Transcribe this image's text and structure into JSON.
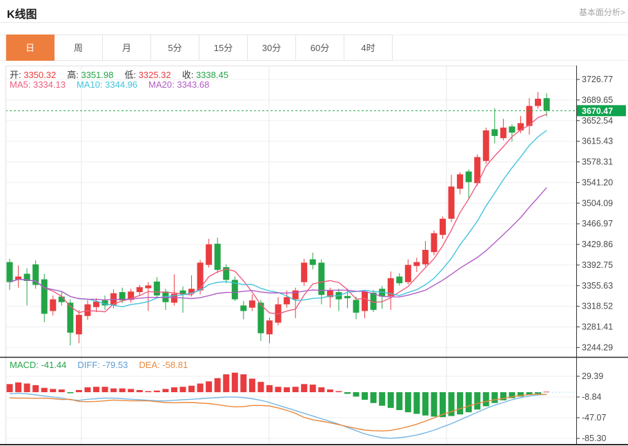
{
  "header": {
    "title": "K线图",
    "link": "基本面分析>"
  },
  "tabs": {
    "selected_index": 0,
    "items": [
      {
        "slug": "day",
        "label": "日"
      },
      {
        "slug": "week",
        "label": "周"
      },
      {
        "slug": "month",
        "label": "月"
      },
      {
        "slug": "5min",
        "label": "5分"
      },
      {
        "slug": "15min",
        "label": "15分"
      },
      {
        "slug": "30min",
        "label": "30分"
      },
      {
        "slug": "60min",
        "label": "60分"
      },
      {
        "slug": "4hour",
        "label": "4时"
      }
    ]
  },
  "ohlc_legend": [
    {
      "label": "开:",
      "value": "3350.32",
      "color": "#e93c3f"
    },
    {
      "label": "高:",
      "value": "3351.98",
      "color": "#23a447"
    },
    {
      "label": "低:",
      "value": "3325.32",
      "color": "#e93c3f"
    },
    {
      "label": "收:",
      "value": "3338.45",
      "color": "#23a447"
    }
  ],
  "ma_legend": [
    {
      "label": "MA5:",
      "value": "3334.13",
      "color": "#f05a7d"
    },
    {
      "label": "MA10:",
      "value": "3344.96",
      "color": "#3fc4dd"
    },
    {
      "label": "MA20:",
      "value": "3343.68",
      "color": "#b25bc4"
    }
  ],
  "macd_legend": [
    {
      "label": "MACD:",
      "value": "-41.44",
      "color": "#23a447"
    },
    {
      "label": "DIFF:",
      "value": "-79.53",
      "color": "#5b9bd5"
    },
    {
      "label": "DEA:",
      "value": "-58.81",
      "color": "#e8883c"
    }
  ],
  "price_tag": {
    "value": "3670.47"
  },
  "chart_data": {
    "type": "candlestick+macd",
    "title": "K线图",
    "legend_position": "top-left",
    "grid": true,
    "price_axis": {
      "side": "right",
      "top_value": 3726.77,
      "step": 37.115,
      "ticks": [
        "3726.77",
        "3689.65",
        "3652.54",
        "3615.43",
        "3578.31",
        "3541.20",
        "3504.09",
        "3466.97",
        "3429.86",
        "3392.75",
        "3355.63",
        "3318.52",
        "3281.41",
        "3244.29"
      ]
    },
    "macd_axis": {
      "side": "right",
      "top_value": 29.39,
      "step": 38.23,
      "ticks": [
        "29.39",
        "-8.84",
        "-47.07",
        "-85.30"
      ]
    },
    "last_price": 3670.47,
    "colors": {
      "up": "#e93c3f",
      "down": "#23a447",
      "ma5": "#f05a7d",
      "ma10": "#3fc4dd",
      "ma20": "#b25bc4",
      "diff": "#74b6e4",
      "dea": "#e8883c",
      "last_price_line": "#23a447",
      "last_price_tag_bg": "#0fa34e",
      "macd_zero_dash": "#a9d9ec",
      "grid": "#efefef",
      "vgrid": "#e8e8e8",
      "axis": "#333",
      "axis_label": "#4a4a4a",
      "border_light": "#e0e0e0",
      "border_dark": "#2b2b2b"
    },
    "ma_periods": [
      5,
      10,
      20
    ],
    "candles_format": [
      "open",
      "high",
      "low",
      "close"
    ],
    "candles": [
      [
        3398,
        3404,
        3348,
        3362
      ],
      [
        3366,
        3392,
        3352,
        3372
      ],
      [
        3377,
        3387,
        3320,
        3364
      ],
      [
        3394,
        3401,
        3350,
        3357
      ],
      [
        3367,
        3377,
        3290,
        3305
      ],
      [
        3310,
        3338,
        3302,
        3331
      ],
      [
        3336,
        3344,
        3320,
        3326
      ],
      [
        3325,
        3331,
        3248,
        3271
      ],
      [
        3268,
        3312,
        3252,
        3303
      ],
      [
        3301,
        3330,
        3294,
        3322
      ],
      [
        3317,
        3333,
        3308,
        3327
      ],
      [
        3329,
        3338,
        3312,
        3320
      ],
      [
        3321,
        3349,
        3315,
        3342
      ],
      [
        3344,
        3352,
        3324,
        3329
      ],
      [
        3330,
        3350,
        3325,
        3345
      ],
      [
        3344,
        3357,
        3337,
        3353
      ],
      [
        3351,
        3362,
        3310,
        3356
      ],
      [
        3363,
        3371,
        3333,
        3338
      ],
      [
        3345,
        3350,
        3312,
        3326
      ],
      [
        3325,
        3376,
        3320,
        3341
      ],
      [
        3347,
        3354,
        3307,
        3341
      ],
      [
        3342,
        3374,
        3336,
        3350
      ],
      [
        3347,
        3402,
        3340,
        3397
      ],
      [
        3393,
        3440,
        3388,
        3430
      ],
      [
        3431,
        3442,
        3378,
        3384
      ],
      [
        3389,
        3394,
        3360,
        3366
      ],
      [
        3366,
        3372,
        3328,
        3331
      ],
      [
        3320,
        3328,
        3295,
        3310
      ],
      [
        3316,
        3340,
        3310,
        3329
      ],
      [
        3325,
        3330,
        3256,
        3270
      ],
      [
        3268,
        3298,
        3252,
        3293
      ],
      [
        3289,
        3335,
        3284,
        3322
      ],
      [
        3322,
        3347,
        3316,
        3335
      ],
      [
        3331,
        3352,
        3297,
        3347
      ],
      [
        3362,
        3404,
        3355,
        3397
      ],
      [
        3403,
        3415,
        3385,
        3393
      ],
      [
        3397,
        3403,
        3322,
        3339
      ],
      [
        3335,
        3352,
        3316,
        3347
      ],
      [
        3344,
        3350,
        3310,
        3331
      ],
      [
        3337,
        3350,
        3315,
        3333
      ],
      [
        3330,
        3336,
        3295,
        3307
      ],
      [
        3310,
        3348,
        3297,
        3345
      ],
      [
        3343,
        3348,
        3308,
        3312
      ],
      [
        3350,
        3355,
        3314,
        3336
      ],
      [
        3337,
        3381,
        3312,
        3369
      ],
      [
        3372,
        3378,
        3356,
        3360
      ],
      [
        3362,
        3403,
        3358,
        3393
      ],
      [
        3391,
        3406,
        3380,
        3398
      ],
      [
        3394,
        3436,
        3390,
        3420
      ],
      [
        3416,
        3455,
        3410,
        3450
      ],
      [
        3447,
        3480,
        3440,
        3476
      ],
      [
        3476,
        3555,
        3470,
        3534
      ],
      [
        3530,
        3560,
        3520,
        3556
      ],
      [
        3561,
        3565,
        3513,
        3542
      ],
      [
        3540,
        3592,
        3535,
        3587
      ],
      [
        3580,
        3640,
        3575,
        3635
      ],
      [
        3637,
        3675,
        3612,
        3625
      ],
      [
        3621,
        3656,
        3617,
        3640
      ],
      [
        3642,
        3646,
        3615,
        3631
      ],
      [
        3635,
        3661,
        3630,
        3648
      ],
      [
        3643,
        3693,
        3627,
        3679
      ],
      [
        3679,
        3704,
        3674,
        3692
      ],
      [
        3693,
        3702,
        3660,
        3670.47
      ]
    ],
    "macd": {
      "hist": [
        15,
        18,
        16,
        13,
        8,
        6,
        5,
        -2,
        4,
        9,
        10,
        10,
        7,
        7,
        6,
        4,
        2,
        3,
        6,
        9,
        10,
        12,
        16,
        20,
        26,
        33,
        36,
        33,
        25,
        19,
        13,
        10,
        9,
        10,
        15,
        14,
        9,
        5,
        2,
        -3,
        -8,
        -14,
        -20,
        -25,
        -29,
        -33,
        -37,
        -40,
        -43,
        -45,
        -46,
        -44,
        -41,
        -37,
        -32,
        -26,
        -20,
        -15,
        -11,
        -8,
        -5,
        -3,
        1
      ],
      "diff": [
        -3,
        -2,
        -3,
        -5,
        -7,
        -9,
        -11,
        -14,
        -15,
        -13,
        -12,
        -11,
        -11,
        -12,
        -13,
        -14,
        -15,
        -16,
        -16,
        -15,
        -14,
        -13,
        -12,
        -11,
        -10,
        -9,
        -9,
        -10,
        -12,
        -15,
        -19,
        -24,
        -29,
        -34,
        -39,
        -44,
        -49,
        -54,
        -59,
        -65,
        -71,
        -77,
        -81,
        -84,
        -85,
        -84,
        -82,
        -79,
        -75,
        -70,
        -64,
        -58,
        -51,
        -44,
        -37,
        -30,
        -24,
        -19,
        -14,
        -10,
        -7,
        -5,
        -4
      ],
      "dea": [
        -10.5,
        -11,
        -11,
        -11.5,
        -11,
        -12,
        -13.5,
        -13,
        -17,
        -17.5,
        -17,
        -16,
        -14.5,
        -15.5,
        -16,
        -16,
        -16,
        -17.5,
        -19,
        -19.5,
        -19,
        -19,
        -20,
        -21,
        -23,
        -25.5,
        -27,
        -26.5,
        -24.5,
        -24.5,
        -25.5,
        -29,
        -33.5,
        -39,
        -46.5,
        -51,
        -53.5,
        -56.5,
        -60,
        -63.5,
        -67,
        -70,
        -71,
        -71.5,
        -70.5,
        -67.5,
        -63.5,
        -59,
        -53.5,
        -47.5,
        -41,
        -36,
        -30.5,
        -25.5,
        -21,
        -17,
        -14,
        -11.5,
        -8.5,
        -6,
        -4.5,
        -3.5,
        -4.5
      ]
    }
  }
}
